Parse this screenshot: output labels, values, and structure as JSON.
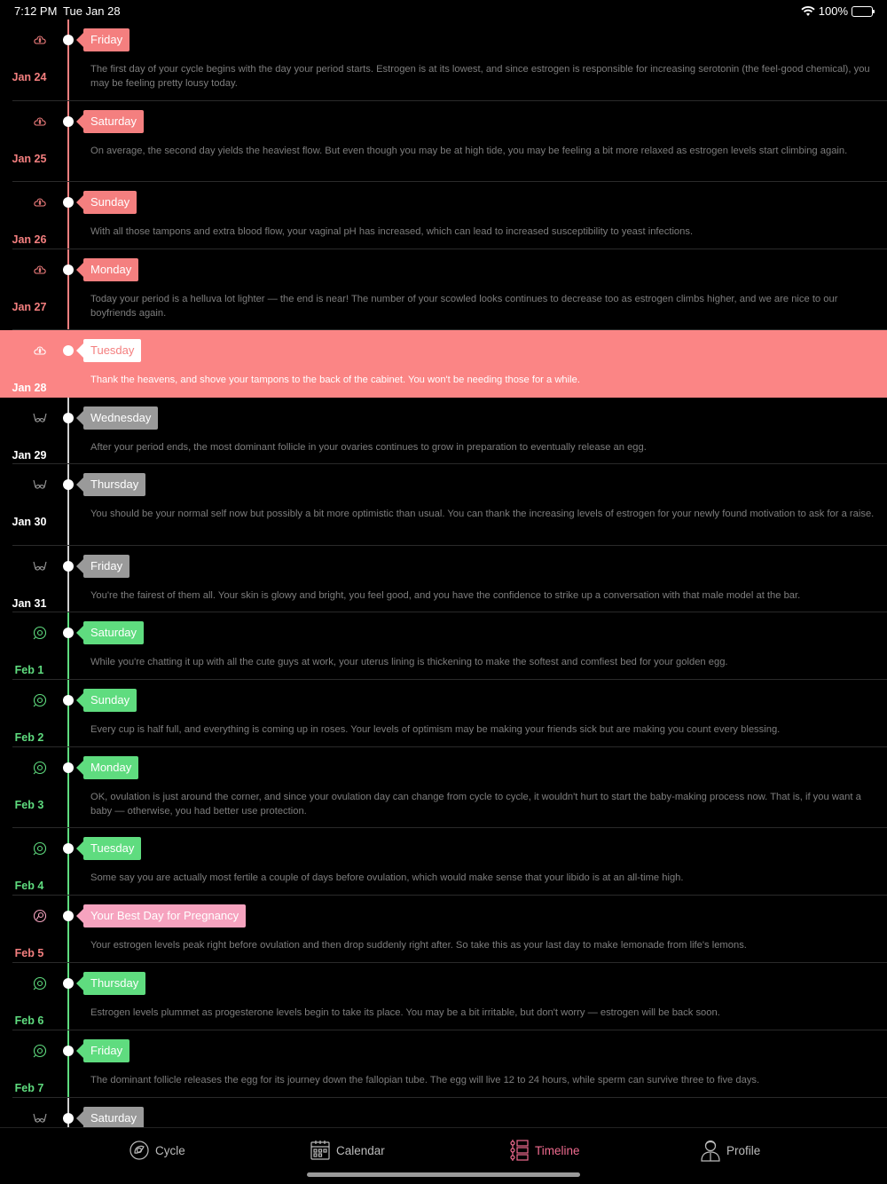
{
  "status_bar": {
    "time": "7:12 PM",
    "date": "Tue Jan 28",
    "battery": "100%"
  },
  "colors": {
    "menstrual": "#f47f7f",
    "today_bg": "#fb8585",
    "safe": "#9a9a9a",
    "fertile": "#5fdc7f",
    "ovulation": "#f6a3bf",
    "tab_active": "#f06b8f"
  },
  "entries": [
    {
      "date": "Jan 24",
      "day": "Friday",
      "phase": "menstrual",
      "icon": "cloud-drop-icon",
      "text": "The first day of your cycle begins with the day your period starts. Estrogen is at its lowest, and since estrogen is responsible for increasing serotonin (the feel-good chemical), you may be feeling pretty lousy today."
    },
    {
      "date": "Jan 25",
      "day": "Saturday",
      "phase": "menstrual",
      "icon": "cloud-drop-icon",
      "text": "On average, the second day yields the heaviest flow. But even though you may be at high tide, you may be feeling a bit more relaxed as estrogen levels start climbing again."
    },
    {
      "date": "Jan 26",
      "day": "Sunday",
      "phase": "menstrual",
      "icon": "cloud-drop-icon",
      "text": "With all those tampons and extra blood flow, your vaginal pH has increased, which can lead to increased susceptibility to yeast infections."
    },
    {
      "date": "Jan 27",
      "day": "Monday",
      "phase": "menstrual",
      "icon": "cloud-drop-icon",
      "text": "Today your period is a helluva lot lighter — the end is near! The number of your scowled looks continues to decrease too as estrogen climbs higher, and we are nice to our boyfriends again."
    },
    {
      "date": "Jan 28",
      "day": "Tuesday",
      "phase": "today",
      "icon": "cloud-drop-icon",
      "text": "Thank the heavens, and shove your tampons to the back of the cabinet. You won't be needing those for a while."
    },
    {
      "date": "Jan 29",
      "day": "Wednesday",
      "phase": "safe",
      "icon": "bra-icon",
      "text": "After your period ends, the most dominant follicle in your ovaries continues to grow in preparation to eventually release an egg."
    },
    {
      "date": "Jan 30",
      "day": "Thursday",
      "phase": "safe",
      "icon": "bra-icon",
      "text": "You should be your normal self now but possibly a bit more optimistic than usual. You can thank the increasing levels of estrogen for your newly found motivation to ask for a raise."
    },
    {
      "date": "Jan 31",
      "day": "Friday",
      "phase": "safe",
      "icon": "bra-icon",
      "text": "You're the fairest of them all. Your skin is glowy and bright, you feel good, and you have the confidence to strike up a conversation with that male model at the bar."
    },
    {
      "date": "Feb 1",
      "day": "Saturday",
      "phase": "fertile",
      "icon": "egg-icon",
      "text": "While you're chatting it up with all the cute guys at work, your uterus lining is thickening to make the softest and comfiest bed for your golden egg."
    },
    {
      "date": "Feb 2",
      "day": "Sunday",
      "phase": "fertile",
      "icon": "egg-icon",
      "text": "Every cup is half full, and everything is coming up in roses. Your levels of optimism may be making your friends sick but are making you count every blessing."
    },
    {
      "date": "Feb 3",
      "day": "Monday",
      "phase": "fertile",
      "icon": "egg-icon",
      "text": "OK, ovulation is just around the corner, and since your ovulation day can change from cycle to cycle, it wouldn't hurt to start the baby-making process now. That is, if you want a baby — otherwise, you had better use protection."
    },
    {
      "date": "Feb 4",
      "day": "Tuesday",
      "phase": "fertile",
      "icon": "egg-icon",
      "text": "Some say you are actually most fertile a couple of days before ovulation, which would make sense that your libido is at an all-time high."
    },
    {
      "date": "Feb 5",
      "day": "Your Best Day for Pregnancy",
      "phase": "ovulation",
      "icon": "ovulation-egg-icon",
      "text": "Your estrogen levels peak right before ovulation and then drop suddenly right after. So take this as your last day to make lemonade from life's lemons."
    },
    {
      "date": "Feb 6",
      "day": "Thursday",
      "phase": "fertile",
      "icon": "egg-icon",
      "text": "Estrogen levels plummet as progesterone levels begin to take its place. You may be a bit irritable, but don't worry — estrogen will be back soon."
    },
    {
      "date": "Feb 7",
      "day": "Friday",
      "phase": "fertile",
      "icon": "egg-icon",
      "text": "The dominant follicle releases the egg for its journey down the fallopian tube. The egg will live 12 to 24 hours, while sperm can survive three to five days."
    },
    {
      "date": "",
      "day": "Saturday",
      "phase": "safe",
      "icon": "bra-icon",
      "text": ""
    }
  ],
  "tabs": [
    {
      "label": "Cycle",
      "icon": "cycle-icon",
      "active": false
    },
    {
      "label": "Calendar",
      "icon": "calendar-icon",
      "active": false
    },
    {
      "label": "Timeline",
      "icon": "timeline-icon",
      "active": true
    },
    {
      "label": "Profile",
      "icon": "profile-icon",
      "active": false
    }
  ]
}
